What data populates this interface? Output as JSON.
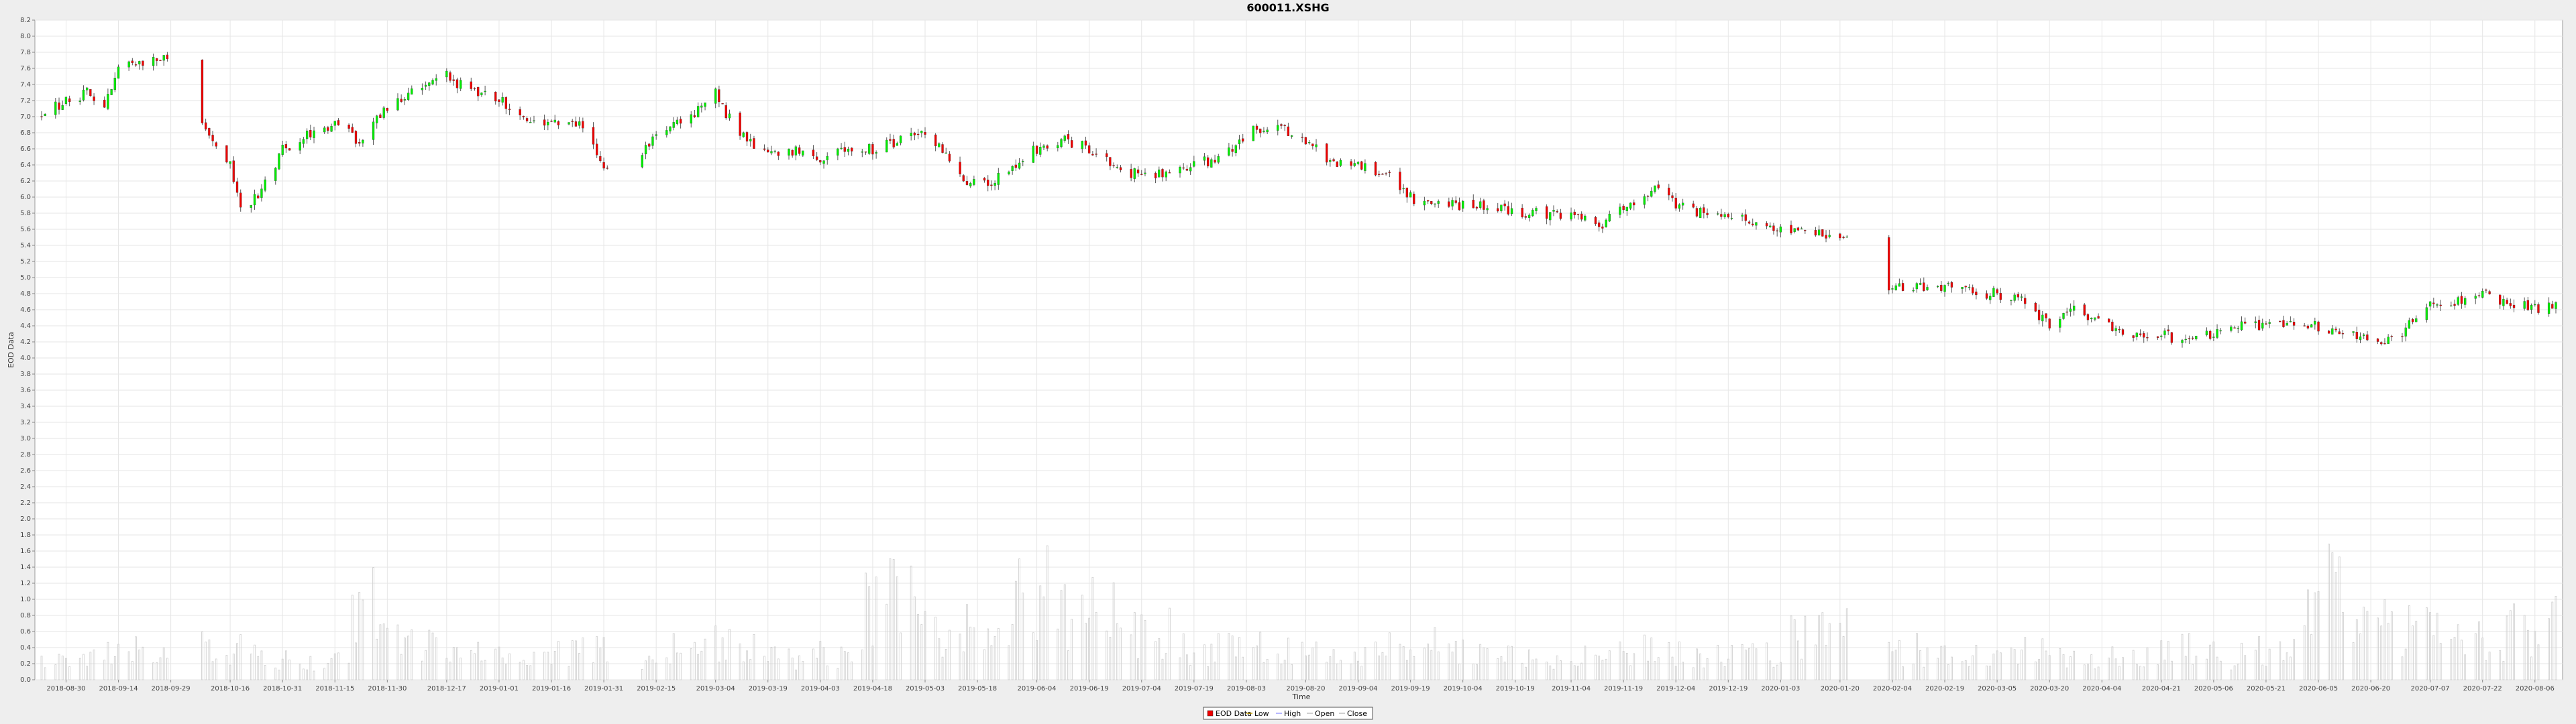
{
  "chart_data": {
    "type": "candlestick",
    "title": "600011.XSHG",
    "xlabel": "Time",
    "ylabel": "EOD Data",
    "ylim": [
      0.0,
      8.2
    ],
    "y_ticks": [
      "0.0",
      "0.2",
      "0.4",
      "0.6",
      "0.8",
      "1.0",
      "1.2",
      "1.4",
      "1.6",
      "1.8",
      "2.0",
      "2.2",
      "2.4",
      "2.6",
      "2.8",
      "3.0",
      "3.2",
      "3.4",
      "3.6",
      "3.8",
      "4.0",
      "4.2",
      "4.4",
      "4.6",
      "4.8",
      "5.0",
      "5.2",
      "5.4",
      "5.6",
      "5.8",
      "6.0",
      "6.2",
      "6.4",
      "6.6",
      "6.8",
      "7.0",
      "7.2",
      "7.4",
      "7.6",
      "7.8",
      "8.0",
      "8.2"
    ],
    "x_ticks": [
      "2018-08-30",
      "2018-09-14",
      "2018-09-29",
      "2018-10-16",
      "2018-10-31",
      "2018-11-15",
      "2018-11-30",
      "2018-12-17",
      "2019-01-01",
      "2019-01-16",
      "2019-01-31",
      "2019-02-15",
      "2019-03-04",
      "2019-03-19",
      "2019-04-03",
      "2019-04-18",
      "2019-05-03",
      "2019-05-18",
      "2019-06-04",
      "2019-06-19",
      "2019-07-04",
      "2019-07-19",
      "2019-08-03",
      "2019-08-20",
      "2019-09-04",
      "2019-09-19",
      "2019-10-04",
      "2019-10-19",
      "2019-11-04",
      "2019-11-19",
      "2019-12-04",
      "2019-12-19",
      "2020-01-03",
      "2020-01-20",
      "2020-02-04",
      "2020-02-19",
      "2020-03-05",
      "2020-03-20",
      "2020-04-04",
      "2020-04-21",
      "2020-05-06",
      "2020-05-21",
      "2020-06-05",
      "2020-06-20",
      "2020-07-07",
      "2020-07-22",
      "2020-08-06"
    ],
    "x_range": [
      "2018-08-23",
      "2020-08-12"
    ],
    "price_anchors": [
      [
        "2018-08-23",
        7.0
      ],
      [
        "2018-08-30",
        7.2
      ],
      [
        "2018-09-05",
        7.3
      ],
      [
        "2018-09-10",
        7.1
      ],
      [
        "2018-09-14",
        7.6
      ],
      [
        "2018-09-22",
        7.7
      ],
      [
        "2018-09-29",
        7.7
      ],
      [
        "2018-10-05",
        7.2
      ],
      [
        "2018-10-10",
        6.8
      ],
      [
        "2018-10-16",
        6.4
      ],
      [
        "2018-10-19",
        5.9
      ],
      [
        "2018-10-24",
        6.0
      ],
      [
        "2018-10-31",
        6.6
      ],
      [
        "2018-11-08",
        6.8
      ],
      [
        "2018-11-15",
        6.9
      ],
      [
        "2018-11-22",
        6.7
      ],
      [
        "2018-11-30",
        7.1
      ],
      [
        "2018-12-10",
        7.4
      ],
      [
        "2018-12-17",
        7.5
      ],
      [
        "2018-12-25",
        7.3
      ],
      [
        "2019-01-01",
        7.2
      ],
      [
        "2019-01-08",
        7.0
      ],
      [
        "2019-01-16",
        6.9
      ],
      [
        "2019-01-24",
        6.9
      ],
      [
        "2019-01-31",
        6.4
      ],
      [
        "2019-02-08",
        6.4
      ],
      [
        "2019-02-15",
        6.8
      ],
      [
        "2019-02-25",
        7.0
      ],
      [
        "2019-03-04",
        7.3
      ],
      [
        "2019-03-10",
        6.8
      ],
      [
        "2019-03-19",
        6.5
      ],
      [
        "2019-03-28",
        6.6
      ],
      [
        "2019-04-03",
        6.5
      ],
      [
        "2019-04-12",
        6.6
      ],
      [
        "2019-04-18",
        6.6
      ],
      [
        "2019-04-26",
        6.7
      ],
      [
        "2019-05-03",
        6.8
      ],
      [
        "2019-05-10",
        6.5
      ],
      [
        "2019-05-15",
        6.2
      ],
      [
        "2019-05-22",
        6.2
      ],
      [
        "2019-06-04",
        6.6
      ],
      [
        "2019-06-12",
        6.7
      ],
      [
        "2019-06-19",
        6.6
      ],
      [
        "2019-06-28",
        6.3
      ],
      [
        "2019-07-04",
        6.3
      ],
      [
        "2019-07-12",
        6.3
      ],
      [
        "2019-07-19",
        6.4
      ],
      [
        "2019-07-28",
        6.5
      ],
      [
        "2019-08-03",
        6.8
      ],
      [
        "2019-08-12",
        6.9
      ],
      [
        "2019-08-20",
        6.7
      ],
      [
        "2019-08-28",
        6.4
      ],
      [
        "2019-09-04",
        6.4
      ],
      [
        "2019-09-12",
        6.3
      ],
      [
        "2019-09-19",
        6.0
      ],
      [
        "2019-09-26",
        5.9
      ],
      [
        "2019-10-04",
        5.9
      ],
      [
        "2019-10-12",
        5.9
      ],
      [
        "2019-10-19",
        5.8
      ],
      [
        "2019-10-28",
        5.8
      ],
      [
        "2019-11-04",
        5.8
      ],
      [
        "2019-11-12",
        5.6
      ],
      [
        "2019-11-19",
        5.9
      ],
      [
        "2019-11-28",
        6.1
      ],
      [
        "2019-12-04",
        5.9
      ],
      [
        "2019-12-12",
        5.8
      ],
      [
        "2019-12-19",
        5.8
      ],
      [
        "2019-12-26",
        5.7
      ],
      [
        "2020-01-03",
        5.6
      ],
      [
        "2020-01-10",
        5.6
      ],
      [
        "2020-01-20",
        5.5
      ],
      [
        "2020-01-24",
        5.5
      ],
      [
        "2020-02-03",
        4.9
      ],
      [
        "2020-02-10",
        4.9
      ],
      [
        "2020-02-19",
        4.9
      ],
      [
        "2020-02-28",
        4.8
      ],
      [
        "2020-03-05",
        4.8
      ],
      [
        "2020-03-12",
        4.7
      ],
      [
        "2020-03-20",
        4.4
      ],
      [
        "2020-03-27",
        4.6
      ],
      [
        "2020-04-04",
        4.4
      ],
      [
        "2020-04-14",
        4.3
      ],
      [
        "2020-04-21",
        4.3
      ],
      [
        "2020-04-28",
        4.2
      ],
      [
        "2020-05-06",
        4.3
      ],
      [
        "2020-05-14",
        4.4
      ],
      [
        "2020-05-21",
        4.4
      ],
      [
        "2020-05-28",
        4.4
      ],
      [
        "2020-06-05",
        4.4
      ],
      [
        "2020-06-12",
        4.3
      ],
      [
        "2020-06-20",
        4.2
      ],
      [
        "2020-06-29",
        4.3
      ],
      [
        "2020-07-07",
        4.7
      ],
      [
        "2020-07-14",
        4.7
      ],
      [
        "2020-07-22",
        4.8
      ],
      [
        "2020-07-29",
        4.7
      ],
      [
        "2020-08-06",
        4.6
      ],
      [
        "2020-08-12",
        4.7
      ]
    ],
    "gaps": [
      [
        "2018-09-30",
        "2018-10-07"
      ],
      [
        "2019-02-02",
        "2019-02-10"
      ],
      [
        "2020-01-23",
        "2020-02-02"
      ]
    ],
    "volume_profile": [
      0.3,
      0.45,
      0.35,
      0.5,
      0.4,
      0.3,
      1.2,
      0.6,
      0.4,
      0.35,
      0.45,
      0.3,
      0.5,
      0.6,
      0.35,
      0.4,
      1.3,
      0.9,
      1.1,
      1.4,
      1.2,
      0.8,
      0.5,
      0.6,
      0.45,
      0.4,
      0.5,
      0.6,
      0.4,
      0.3,
      0.45,
      0.5,
      0.4,
      0.45,
      0.7,
      0.8,
      0.5,
      0.4,
      0.45,
      0.35,
      0.4,
      0.5,
      0.4,
      0.45,
      1.5,
      1.2,
      0.8,
      0.6,
      0.9
    ],
    "legend": [
      "EOD Data",
      "Low",
      "High",
      "Open",
      "Close"
    ],
    "legend_position": "bottom-center",
    "grid": true,
    "colors": {
      "up": "#00ee00",
      "down": "#ee0000",
      "wick": "#555555",
      "volume": "#cfcfcf",
      "grid": "#e6e6e6",
      "plot_bg": "#ffffff",
      "page_bg": "#eeeeee"
    }
  }
}
